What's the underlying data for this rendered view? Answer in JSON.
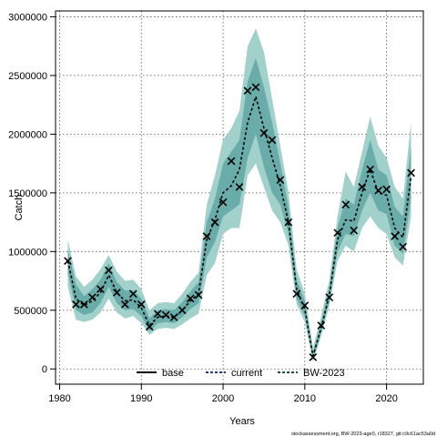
{
  "chart_data": {
    "type": "line",
    "title": "",
    "xlabel": "Years",
    "ylabel": "Catch",
    "xlim": [
      1979.5,
      2024.5
    ],
    "ylim": [
      -130000,
      3050000
    ],
    "x_ticks": [
      1980,
      1990,
      2000,
      2010,
      2020
    ],
    "y_ticks": [
      0,
      500000,
      1000000,
      1500000,
      2000000,
      2500000,
      3000000
    ],
    "x_tick_labels": [
      "1980",
      "1990",
      "2000",
      "2010",
      "2020"
    ],
    "y_tick_labels": [
      "0",
      "500000",
      "1000000",
      "1500000",
      "2000000",
      "2500000",
      "3000000"
    ],
    "grid": true,
    "legend_position": "bottom-center",
    "legend": [
      {
        "label": "base",
        "color": "#000000",
        "style": "solid"
      },
      {
        "label": "current",
        "color": "#1f3f7a",
        "style": "dashed"
      },
      {
        "label": "BW-2023",
        "color": "#1f4f3f",
        "style": "dashed"
      }
    ],
    "band_colors": {
      "outer": "#a2d1cc",
      "inner": "#5fa6a2",
      "overlap": "#6aafaa"
    },
    "line_color": "#000000",
    "years": [
      1981,
      1982,
      1983,
      1984,
      1985,
      1986,
      1987,
      1988,
      1989,
      1990,
      1991,
      1992,
      1993,
      1994,
      1995,
      1996,
      1997,
      1998,
      1999,
      2000,
      2001,
      2002,
      2003,
      2004,
      2005,
      2006,
      2007,
      2008,
      2009,
      2010,
      2011,
      2012,
      2013,
      2014,
      2015,
      2016,
      2017,
      2018,
      2019,
      2020,
      2021,
      2022,
      2023
    ],
    "median": [
      920000,
      600000,
      540000,
      580000,
      650000,
      800000,
      650000,
      580000,
      590000,
      520000,
      370000,
      440000,
      450000,
      440000,
      500000,
      580000,
      640000,
      1100000,
      1270000,
      1500000,
      1560000,
      1700000,
      2100000,
      2320000,
      2050000,
      1800000,
      1560000,
      1250000,
      680000,
      510000,
      110000,
      350000,
      630000,
      1100000,
      1270000,
      1260000,
      1500000,
      1700000,
      1500000,
      1480000,
      1200000,
      1120000,
      1640000
    ],
    "inner_low": [
      820000,
      500000,
      460000,
      480000,
      560000,
      700000,
      560000,
      500000,
      510000,
      450000,
      320000,
      390000,
      400000,
      390000,
      440000,
      510000,
      560000,
      950000,
      1080000,
      1300000,
      1350000,
      1400000,
      1800000,
      2000000,
      1720000,
      1500000,
      1400000,
      1150000,
      600000,
      450000,
      80000,
      310000,
      580000,
      1000000,
      1150000,
      1130000,
      1350000,
      1500000,
      1350000,
      1320000,
      1050000,
      980000,
      1450000
    ],
    "inner_high": [
      1020000,
      720000,
      620000,
      680000,
      760000,
      900000,
      740000,
      670000,
      670000,
      600000,
      430000,
      500000,
      510000,
      500000,
      570000,
      660000,
      740000,
      1250000,
      1450000,
      1750000,
      1850000,
      1950000,
      2450000,
      2650000,
      2400000,
      2100000,
      1750000,
      1380000,
      760000,
      580000,
      140000,
      400000,
      700000,
      1200000,
      1450000,
      1400000,
      1700000,
      1950000,
      1700000,
      1650000,
      1380000,
      1300000,
      1900000
    ],
    "outer_low": [
      700000,
      420000,
      400000,
      420000,
      480000,
      600000,
      480000,
      430000,
      450000,
      390000,
      290000,
      340000,
      350000,
      340000,
      380000,
      430000,
      470000,
      800000,
      900000,
      1150000,
      1200000,
      1200000,
      1650000,
      1750000,
      1550000,
      1350000,
      1250000,
      1050000,
      550000,
      400000,
      60000,
      280000,
      540000,
      920000,
      1050000,
      1000000,
      1200000,
      1300000,
      1200000,
      1150000,
      950000,
      880000,
      1300000
    ],
    "outer_high": [
      1100000,
      790000,
      700000,
      760000,
      850000,
      970000,
      830000,
      750000,
      760000,
      680000,
      500000,
      560000,
      570000,
      560000,
      640000,
      740000,
      820000,
      1400000,
      1650000,
      1950000,
      2050000,
      2200000,
      2750000,
      2900000,
      2700000,
      2300000,
      1900000,
      1500000,
      850000,
      640000,
      180000,
      450000,
      760000,
      1300000,
      1680000,
      1550000,
      1850000,
      2150000,
      1900000,
      1800000,
      1550000,
      1450000,
      2100000
    ],
    "observed": [
      920000,
      550000,
      550000,
      610000,
      680000,
      840000,
      650000,
      550000,
      640000,
      550000,
      360000,
      470000,
      460000,
      440000,
      500000,
      600000,
      630000,
      1130000,
      1250000,
      1420000,
      1770000,
      1550000,
      2370000,
      2400000,
      2010000,
      1950000,
      1610000,
      1250000,
      640000,
      540000,
      100000,
      370000,
      610000,
      1160000,
      1400000,
      1180000,
      1550000,
      1700000,
      1520000,
      1530000,
      1130000,
      1040000,
      1670000
    ]
  },
  "footer": "stockassessment.org, BW-2023-age0, r18327, git:c9c61ac53a0d"
}
